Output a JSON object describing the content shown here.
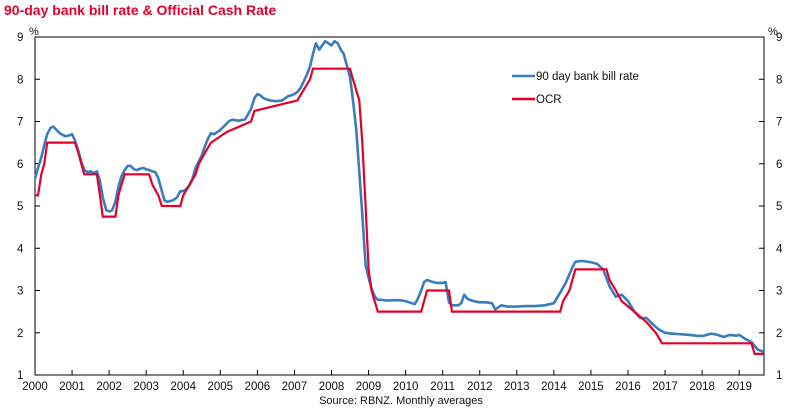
{
  "chart_data": {
    "type": "line",
    "title": "90-day bank bill rate & Official Cash Rate",
    "left_unit": "%",
    "right_unit": "%",
    "source": "Source: RBNZ. Monthly averages",
    "ylim": [
      1,
      9
    ],
    "yticks": [
      "1",
      "2",
      "3",
      "4",
      "5",
      "6",
      "7",
      "8",
      "9"
    ],
    "xlim": [
      2000,
      2019.67
    ],
    "xticks": [
      "2000",
      "2001",
      "2002",
      "2003",
      "2004",
      "2005",
      "2006",
      "2007",
      "2008",
      "2009",
      "2010",
      "2011",
      "2012",
      "2013",
      "2014",
      "2015",
      "2016",
      "2017",
      "2018",
      "2019"
    ],
    "legend_position": "upper-right",
    "grid": false,
    "series": [
      {
        "name": "90 day bank bill rate",
        "color": "#3a7dbf",
        "points": [
          [
            2000.0,
            5.65
          ],
          [
            2000.08,
            5.9
          ],
          [
            2000.17,
            6.15
          ],
          [
            2000.25,
            6.45
          ],
          [
            2000.33,
            6.7
          ],
          [
            2000.42,
            6.85
          ],
          [
            2000.5,
            6.88
          ],
          [
            2000.58,
            6.8
          ],
          [
            2000.67,
            6.72
          ],
          [
            2000.75,
            6.68
          ],
          [
            2000.83,
            6.65
          ],
          [
            2000.92,
            6.67
          ],
          [
            2001.0,
            6.7
          ],
          [
            2001.08,
            6.55
          ],
          [
            2001.17,
            6.3
          ],
          [
            2001.25,
            6.05
          ],
          [
            2001.33,
            5.85
          ],
          [
            2001.42,
            5.8
          ],
          [
            2001.5,
            5.82
          ],
          [
            2001.58,
            5.78
          ],
          [
            2001.67,
            5.82
          ],
          [
            2001.75,
            5.6
          ],
          [
            2001.83,
            5.2
          ],
          [
            2001.92,
            4.9
          ],
          [
            2002.0,
            4.87
          ],
          [
            2002.08,
            4.9
          ],
          [
            2002.17,
            5.1
          ],
          [
            2002.25,
            5.45
          ],
          [
            2002.33,
            5.7
          ],
          [
            2002.42,
            5.85
          ],
          [
            2002.5,
            5.95
          ],
          [
            2002.58,
            5.95
          ],
          [
            2002.67,
            5.87
          ],
          [
            2002.75,
            5.85
          ],
          [
            2002.83,
            5.88
          ],
          [
            2002.92,
            5.9
          ],
          [
            2003.0,
            5.87
          ],
          [
            2003.08,
            5.85
          ],
          [
            2003.17,
            5.82
          ],
          [
            2003.25,
            5.8
          ],
          [
            2003.33,
            5.65
          ],
          [
            2003.42,
            5.35
          ],
          [
            2003.5,
            5.12
          ],
          [
            2003.58,
            5.1
          ],
          [
            2003.67,
            5.12
          ],
          [
            2003.75,
            5.15
          ],
          [
            2003.83,
            5.2
          ],
          [
            2003.92,
            5.35
          ],
          [
            2004.0,
            5.35
          ],
          [
            2004.08,
            5.4
          ],
          [
            2004.17,
            5.5
          ],
          [
            2004.25,
            5.65
          ],
          [
            2004.33,
            5.9
          ],
          [
            2004.42,
            6.05
          ],
          [
            2004.5,
            6.2
          ],
          [
            2004.58,
            6.4
          ],
          [
            2004.67,
            6.6
          ],
          [
            2004.75,
            6.72
          ],
          [
            2004.83,
            6.7
          ],
          [
            2004.92,
            6.75
          ],
          [
            2005.0,
            6.8
          ],
          [
            2005.17,
            6.95
          ],
          [
            2005.25,
            7.02
          ],
          [
            2005.33,
            7.04
          ],
          [
            2005.5,
            7.02
          ],
          [
            2005.67,
            7.05
          ],
          [
            2005.83,
            7.3
          ],
          [
            2005.92,
            7.55
          ],
          [
            2006.0,
            7.65
          ],
          [
            2006.08,
            7.62
          ],
          [
            2006.17,
            7.55
          ],
          [
            2006.33,
            7.5
          ],
          [
            2006.5,
            7.48
          ],
          [
            2006.67,
            7.5
          ],
          [
            2006.83,
            7.6
          ],
          [
            2006.92,
            7.62
          ],
          [
            2007.0,
            7.65
          ],
          [
            2007.08,
            7.7
          ],
          [
            2007.17,
            7.8
          ],
          [
            2007.25,
            7.95
          ],
          [
            2007.33,
            8.1
          ],
          [
            2007.42,
            8.3
          ],
          [
            2007.5,
            8.6
          ],
          [
            2007.58,
            8.85
          ],
          [
            2007.67,
            8.7
          ],
          [
            2007.75,
            8.8
          ],
          [
            2007.83,
            8.9
          ],
          [
            2007.92,
            8.85
          ],
          [
            2008.0,
            8.8
          ],
          [
            2008.08,
            8.9
          ],
          [
            2008.17,
            8.85
          ],
          [
            2008.25,
            8.7
          ],
          [
            2008.33,
            8.6
          ],
          [
            2008.42,
            8.3
          ],
          [
            2008.5,
            8.05
          ],
          [
            2008.58,
            7.5
          ],
          [
            2008.67,
            6.8
          ],
          [
            2008.75,
            5.8
          ],
          [
            2008.83,
            4.8
          ],
          [
            2008.92,
            3.6
          ],
          [
            2009.0,
            3.3
          ],
          [
            2009.08,
            3.05
          ],
          [
            2009.17,
            2.85
          ],
          [
            2009.25,
            2.78
          ],
          [
            2009.33,
            2.78
          ],
          [
            2009.5,
            2.76
          ],
          [
            2009.67,
            2.77
          ],
          [
            2009.83,
            2.77
          ],
          [
            2010.0,
            2.75
          ],
          [
            2010.17,
            2.7
          ],
          [
            2010.25,
            2.68
          ],
          [
            2010.33,
            2.8
          ],
          [
            2010.42,
            3.0
          ],
          [
            2010.5,
            3.2
          ],
          [
            2010.58,
            3.25
          ],
          [
            2010.67,
            3.22
          ],
          [
            2010.83,
            3.18
          ],
          [
            2011.0,
            3.18
          ],
          [
            2011.08,
            3.2
          ],
          [
            2011.17,
            2.72
          ],
          [
            2011.25,
            2.65
          ],
          [
            2011.42,
            2.65
          ],
          [
            2011.5,
            2.7
          ],
          [
            2011.58,
            2.9
          ],
          [
            2011.67,
            2.8
          ],
          [
            2011.83,
            2.75
          ],
          [
            2012.0,
            2.72
          ],
          [
            2012.17,
            2.72
          ],
          [
            2012.33,
            2.7
          ],
          [
            2012.42,
            2.55
          ],
          [
            2012.58,
            2.65
          ],
          [
            2012.75,
            2.62
          ],
          [
            2013.0,
            2.62
          ],
          [
            2013.25,
            2.63
          ],
          [
            2013.5,
            2.63
          ],
          [
            2013.75,
            2.65
          ],
          [
            2014.0,
            2.7
          ],
          [
            2014.17,
            2.95
          ],
          [
            2014.33,
            3.2
          ],
          [
            2014.5,
            3.55
          ],
          [
            2014.58,
            3.68
          ],
          [
            2014.75,
            3.7
          ],
          [
            2014.92,
            3.68
          ],
          [
            2015.0,
            3.67
          ],
          [
            2015.17,
            3.63
          ],
          [
            2015.33,
            3.5
          ],
          [
            2015.5,
            3.1
          ],
          [
            2015.67,
            2.85
          ],
          [
            2015.83,
            2.9
          ],
          [
            2016.0,
            2.75
          ],
          [
            2016.17,
            2.5
          ],
          [
            2016.33,
            2.35
          ],
          [
            2016.5,
            2.35
          ],
          [
            2016.67,
            2.2
          ],
          [
            2016.83,
            2.08
          ],
          [
            2017.0,
            2.0
          ],
          [
            2017.17,
            1.98
          ],
          [
            2017.33,
            1.97
          ],
          [
            2017.5,
            1.96
          ],
          [
            2017.67,
            1.95
          ],
          [
            2017.83,
            1.93
          ],
          [
            2018.0,
            1.92
          ],
          [
            2018.25,
            1.98
          ],
          [
            2018.42,
            1.95
          ],
          [
            2018.58,
            1.9
          ],
          [
            2018.75,
            1.95
          ],
          [
            2018.92,
            1.93
          ],
          [
            2019.0,
            1.95
          ],
          [
            2019.17,
            1.85
          ],
          [
            2019.33,
            1.78
          ],
          [
            2019.5,
            1.6
          ],
          [
            2019.67,
            1.55
          ]
        ]
      },
      {
        "name": "OCR",
        "color": "#e4002b",
        "points": [
          [
            2000.0,
            5.25
          ],
          [
            2000.08,
            5.25
          ],
          [
            2000.17,
            5.75
          ],
          [
            2000.25,
            6.0
          ],
          [
            2000.33,
            6.5
          ],
          [
            2001.08,
            6.5
          ],
          [
            2001.17,
            6.25
          ],
          [
            2001.25,
            6.0
          ],
          [
            2001.33,
            5.75
          ],
          [
            2001.67,
            5.75
          ],
          [
            2001.75,
            5.25
          ],
          [
            2001.83,
            4.75
          ],
          [
            2002.17,
            4.75
          ],
          [
            2002.25,
            5.25
          ],
          [
            2002.33,
            5.5
          ],
          [
            2002.42,
            5.75
          ],
          [
            2003.08,
            5.75
          ],
          [
            2003.17,
            5.5
          ],
          [
            2003.33,
            5.25
          ],
          [
            2003.42,
            5.0
          ],
          [
            2003.92,
            5.0
          ],
          [
            2004.0,
            5.25
          ],
          [
            2004.17,
            5.5
          ],
          [
            2004.33,
            5.75
          ],
          [
            2004.42,
            6.0
          ],
          [
            2004.58,
            6.25
          ],
          [
            2004.75,
            6.5
          ],
          [
            2005.17,
            6.75
          ],
          [
            2005.83,
            7.0
          ],
          [
            2005.92,
            7.25
          ],
          [
            2007.08,
            7.5
          ],
          [
            2007.25,
            7.75
          ],
          [
            2007.42,
            8.0
          ],
          [
            2007.5,
            8.25
          ],
          [
            2008.5,
            8.25
          ],
          [
            2008.58,
            8.0
          ],
          [
            2008.75,
            7.5
          ],
          [
            2008.83,
            6.5
          ],
          [
            2008.92,
            5.0
          ],
          [
            2009.0,
            3.5
          ],
          [
            2009.08,
            3.0
          ],
          [
            2009.25,
            2.5
          ],
          [
            2010.42,
            2.5
          ],
          [
            2010.5,
            2.75
          ],
          [
            2010.58,
            3.0
          ],
          [
            2011.17,
            3.0
          ],
          [
            2011.25,
            2.5
          ],
          [
            2014.17,
            2.5
          ],
          [
            2014.25,
            2.75
          ],
          [
            2014.42,
            3.0
          ],
          [
            2014.5,
            3.25
          ],
          [
            2014.58,
            3.5
          ],
          [
            2015.42,
            3.5
          ],
          [
            2015.5,
            3.25
          ],
          [
            2015.67,
            3.0
          ],
          [
            2015.83,
            2.75
          ],
          [
            2016.17,
            2.5
          ],
          [
            2016.5,
            2.25
          ],
          [
            2016.75,
            2.0
          ],
          [
            2016.92,
            1.75
          ],
          [
            2019.33,
            1.75
          ],
          [
            2019.42,
            1.5
          ],
          [
            2019.67,
            1.5
          ]
        ]
      }
    ]
  }
}
